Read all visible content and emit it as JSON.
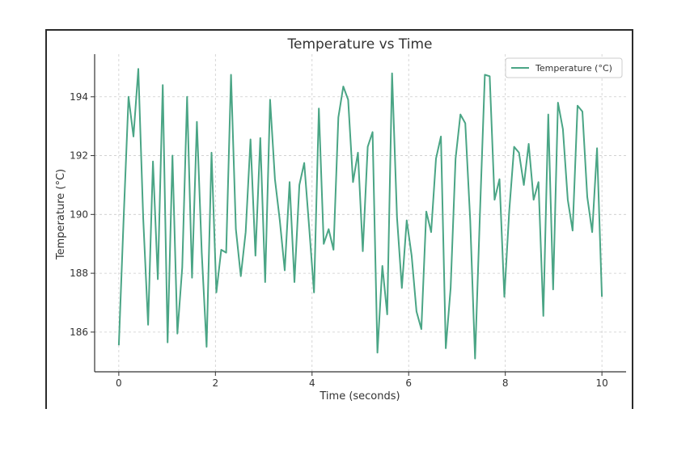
{
  "chart_data": {
    "type": "line",
    "title": "Temperature vs Time",
    "xlabel": "Time (seconds)",
    "ylabel": "Temperature (°C)",
    "xlim": [
      -0.5,
      10.5
    ],
    "ylim": [
      184.65,
      195.45
    ],
    "x_ticks": [
      0,
      2,
      4,
      6,
      8,
      10
    ],
    "y_ticks": [
      186,
      188,
      190,
      192,
      194
    ],
    "grid": true,
    "legend_position": "top-right",
    "colors": {
      "line": "#4aa585",
      "grid": "#cccccc",
      "axis": "#333333",
      "text": "#333333"
    },
    "series": [
      {
        "name": "Temperature (°C)",
        "x": [
          0.0,
          0.101,
          0.202,
          0.303,
          0.404,
          0.505,
          0.606,
          0.707,
          0.808,
          0.909,
          1.01,
          1.111,
          1.212,
          1.313,
          1.414,
          1.515,
          1.616,
          1.717,
          1.818,
          1.919,
          2.02,
          2.121,
          2.222,
          2.323,
          2.424,
          2.525,
          2.626,
          2.727,
          2.828,
          2.929,
          3.03,
          3.131,
          3.232,
          3.333,
          3.434,
          3.535,
          3.636,
          3.737,
          3.838,
          3.939,
          4.04,
          4.141,
          4.242,
          4.343,
          4.444,
          4.545,
          4.646,
          4.747,
          4.848,
          4.949,
          5.051,
          5.152,
          5.253,
          5.354,
          5.455,
          5.556,
          5.657,
          5.758,
          5.859,
          5.96,
          6.061,
          6.162,
          6.263,
          6.364,
          6.465,
          6.566,
          6.667,
          6.768,
          6.869,
          6.97,
          7.071,
          7.172,
          7.273,
          7.374,
          7.475,
          7.576,
          7.677,
          7.778,
          7.879,
          7.98,
          8.081,
          8.182,
          8.283,
          8.384,
          8.485,
          8.586,
          8.687,
          8.788,
          8.889,
          8.99,
          9.091,
          9.192,
          9.293,
          9.394,
          9.495,
          9.596,
          9.697,
          9.798,
          9.899,
          10.0
        ],
        "y": [
          185.55,
          189.9,
          194.0,
          192.65,
          194.95,
          189.9,
          186.25,
          191.8,
          187.8,
          194.4,
          185.65,
          192.0,
          185.95,
          188.2,
          194.0,
          187.85,
          193.15,
          188.7,
          185.5,
          192.1,
          187.35,
          188.8,
          188.7,
          194.75,
          189.5,
          187.9,
          189.4,
          192.55,
          188.6,
          192.6,
          187.7,
          193.9,
          191.2,
          189.8,
          188.1,
          191.1,
          187.7,
          191.0,
          191.75,
          189.6,
          187.35,
          193.6,
          189.0,
          189.5,
          188.8,
          193.3,
          194.35,
          193.9,
          191.1,
          192.1,
          188.75,
          192.3,
          192.8,
          185.3,
          188.25,
          186.6,
          194.8,
          189.9,
          187.5,
          189.8,
          188.6,
          186.7,
          186.1,
          190.1,
          189.4,
          191.9,
          192.65,
          185.45,
          187.5,
          191.9,
          193.4,
          193.1,
          189.8,
          185.1,
          190.0,
          194.75,
          194.7,
          190.5,
          191.2,
          187.2,
          190.1,
          192.3,
          192.1,
          191.0,
          192.4,
          190.5,
          191.1,
          186.55,
          193.4,
          187.45,
          193.8,
          192.9,
          190.5,
          189.45,
          193.7,
          193.5,
          190.6,
          189.4,
          192.25,
          187.2
        ]
      }
    ]
  }
}
